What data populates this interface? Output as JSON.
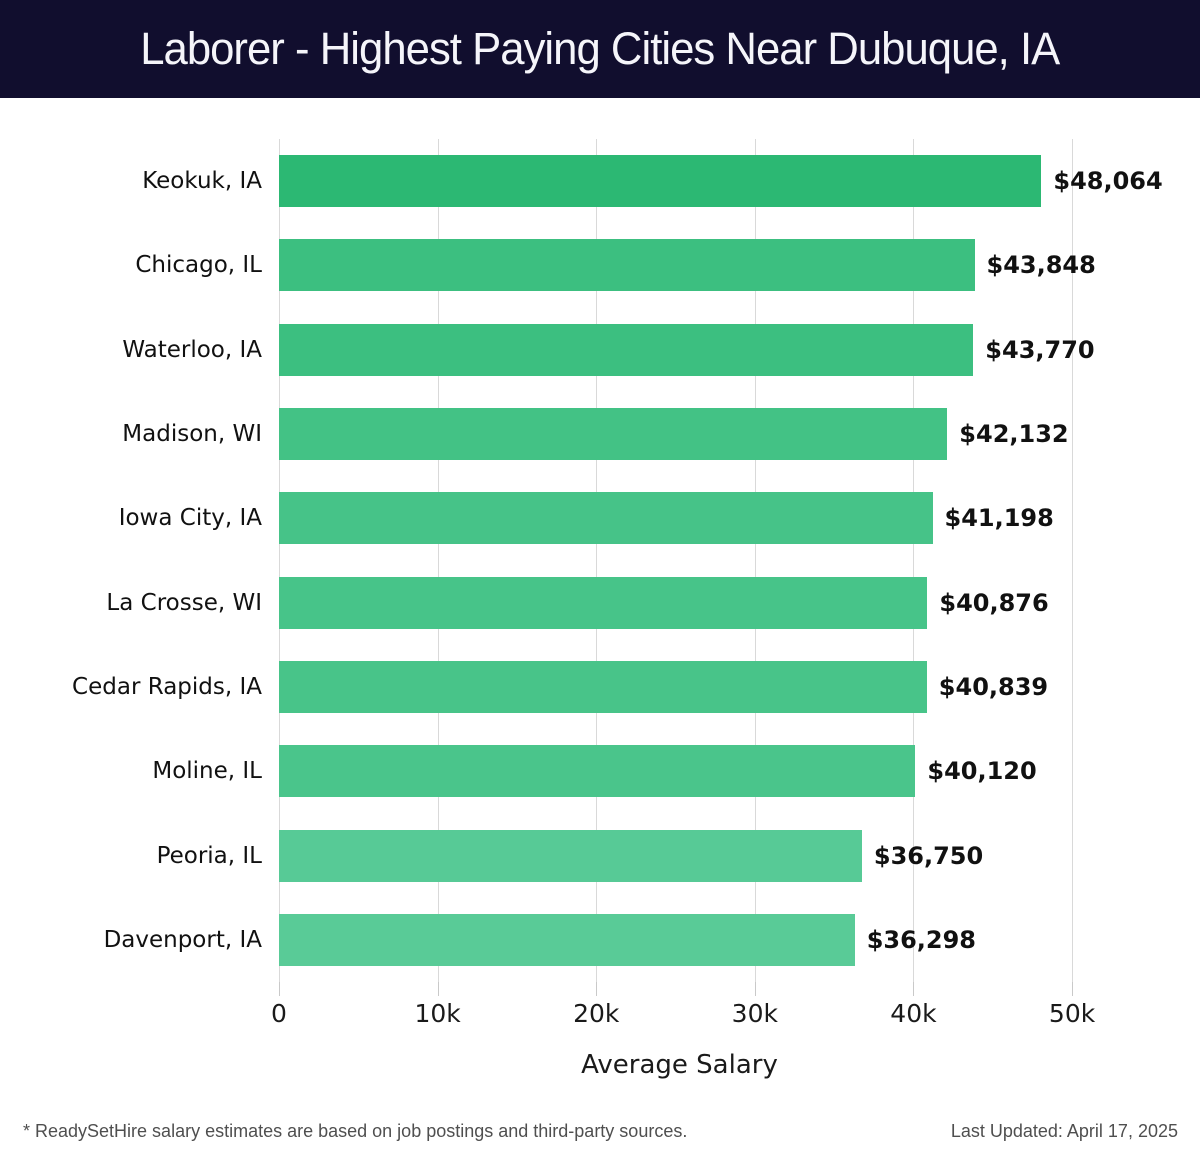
{
  "header": {
    "title": "Laborer - Highest Paying Cities Near Dubuque, IA"
  },
  "chart_data": {
    "type": "bar",
    "orientation": "horizontal",
    "title": "Laborer - Highest Paying Cities Near Dubuque, IA",
    "categories": [
      "Keokuk, IA",
      "Chicago, IL",
      "Waterloo, IA",
      "Madison, WI",
      "Iowa City, IA",
      "La Crosse, WI",
      "Cedar Rapids, IA",
      "Moline, IL",
      "Peoria, IL",
      "Davenport, IA"
    ],
    "values": [
      48064,
      43848,
      43770,
      42132,
      41198,
      40876,
      40839,
      40120,
      36750,
      36298
    ],
    "value_labels": [
      "$48,064",
      "$43,848",
      "$43,770",
      "$42,132",
      "$41,198",
      "$40,876",
      "$40,839",
      "$40,120",
      "$36,750",
      "$36,298"
    ],
    "xlabel": "Average Salary",
    "xlim": [
      0,
      50500
    ],
    "ticks": {
      "values": [
        0,
        10000,
        20000,
        30000,
        40000,
        50000
      ],
      "labels": [
        "0",
        "10k",
        "20k",
        "30k",
        "40k",
        "50k"
      ]
    },
    "grid": true,
    "legend": "none",
    "colors": {
      "bar_max": "#2cb873",
      "bar_min": "#59cb97",
      "header_bg": "#110e2e",
      "gridline": "#d9d9d9",
      "tick": "#c9c9c9",
      "text": "#111111",
      "footer_text": "#4f4f4f"
    }
  },
  "footer": {
    "note": "* ReadySetHire salary estimates are based on job postings and third-party sources.",
    "last_updated": "Last Updated: April 17, 2025"
  }
}
